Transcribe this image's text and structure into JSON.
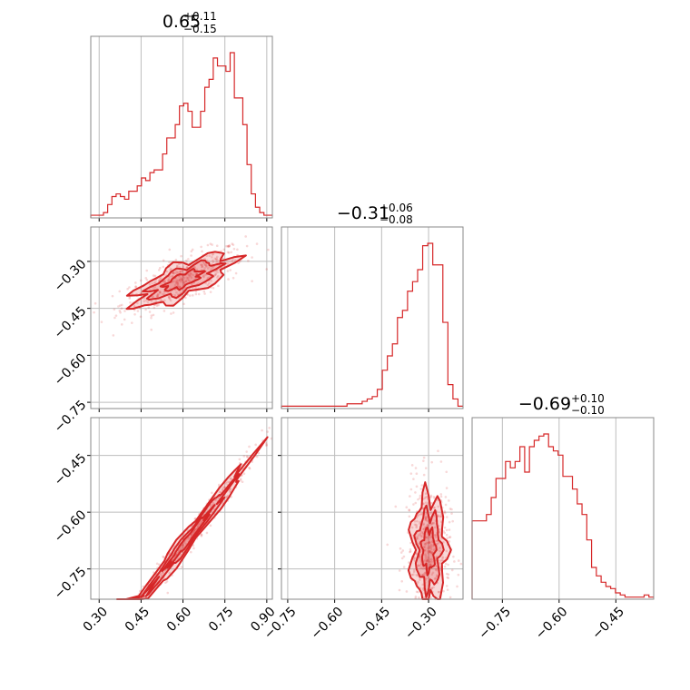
{
  "figure": {
    "color": "#d62728",
    "grid": true,
    "type": "corner-plot"
  },
  "chart_data": {
    "type": "corner",
    "parameters": [
      {
        "index": 0,
        "title": {
          "median": "0.65",
          "plus": "+0.11",
          "minus": "−0.15"
        },
        "range": [
          0.27,
          0.92
        ],
        "ticks": [
          0.3,
          0.45,
          0.6,
          0.75,
          0.9
        ],
        "tick_labels": [
          "0.30",
          "0.45",
          "0.60",
          "0.75",
          "0.90"
        ],
        "hist": {
          "values": [
            1,
            1,
            1,
            2,
            5,
            8,
            9,
            8,
            7,
            10,
            10,
            12,
            15,
            14,
            17,
            18,
            18,
            24,
            30,
            30,
            35,
            42,
            43,
            40,
            34,
            34,
            40,
            49,
            52,
            60,
            57,
            57,
            55,
            62,
            45,
            45,
            35,
            20,
            9,
            4,
            2,
            1,
            1
          ],
          "max": 62
        }
      },
      {
        "index": 1,
        "title": {
          "median": "−0.31",
          "plus": "+0.06",
          "minus": "−0.08"
        },
        "range": [
          -0.77,
          -0.19
        ],
        "ticks": [
          -0.75,
          -0.6,
          -0.45,
          -0.3
        ],
        "tick_labels": [
          "−0.75",
          "−0.60",
          "−0.45",
          "−0.30"
        ],
        "hist": {
          "values": [
            1,
            1,
            1,
            1,
            1,
            1,
            1,
            1,
            1,
            1,
            1,
            1,
            1,
            2,
            2,
            2,
            3,
            4,
            5,
            8,
            16,
            22,
            27,
            38,
            41,
            49,
            53,
            58,
            68,
            69,
            60,
            60,
            36,
            10,
            4,
            1
          ],
          "max": 69
        }
      },
      {
        "index": 2,
        "title": {
          "median": "−0.69",
          "plus": "+0.10",
          "minus": "−0.10"
        },
        "range": [
          -0.83,
          -0.35
        ],
        "ticks": [
          -0.75,
          -0.6,
          -0.45
        ],
        "tick_labels": [
          "−0.75",
          "−0.60",
          "−0.45"
        ],
        "hist": {
          "values": [
            37,
            37,
            37,
            40,
            48,
            57,
            57,
            65,
            62,
            65,
            72,
            60,
            72,
            75,
            77,
            78,
            72,
            70,
            68,
            58,
            58,
            52,
            45,
            40,
            28,
            15,
            11,
            8,
            6,
            5,
            3,
            2,
            1,
            1,
            1,
            1,
            2,
            1
          ],
          "max": 78
        }
      }
    ],
    "pairs": [
      {
        "x": 0,
        "y": 1,
        "center": [
          0.6,
          -0.36
        ],
        "slope": 0.35
      },
      {
        "x": 0,
        "y": 2,
        "center": [
          0.62,
          -0.67
        ],
        "slope": 0.95
      },
      {
        "x": 1,
        "y": 2,
        "center": [
          -0.3,
          -0.7
        ],
        "slope": 0.0
      }
    ]
  }
}
